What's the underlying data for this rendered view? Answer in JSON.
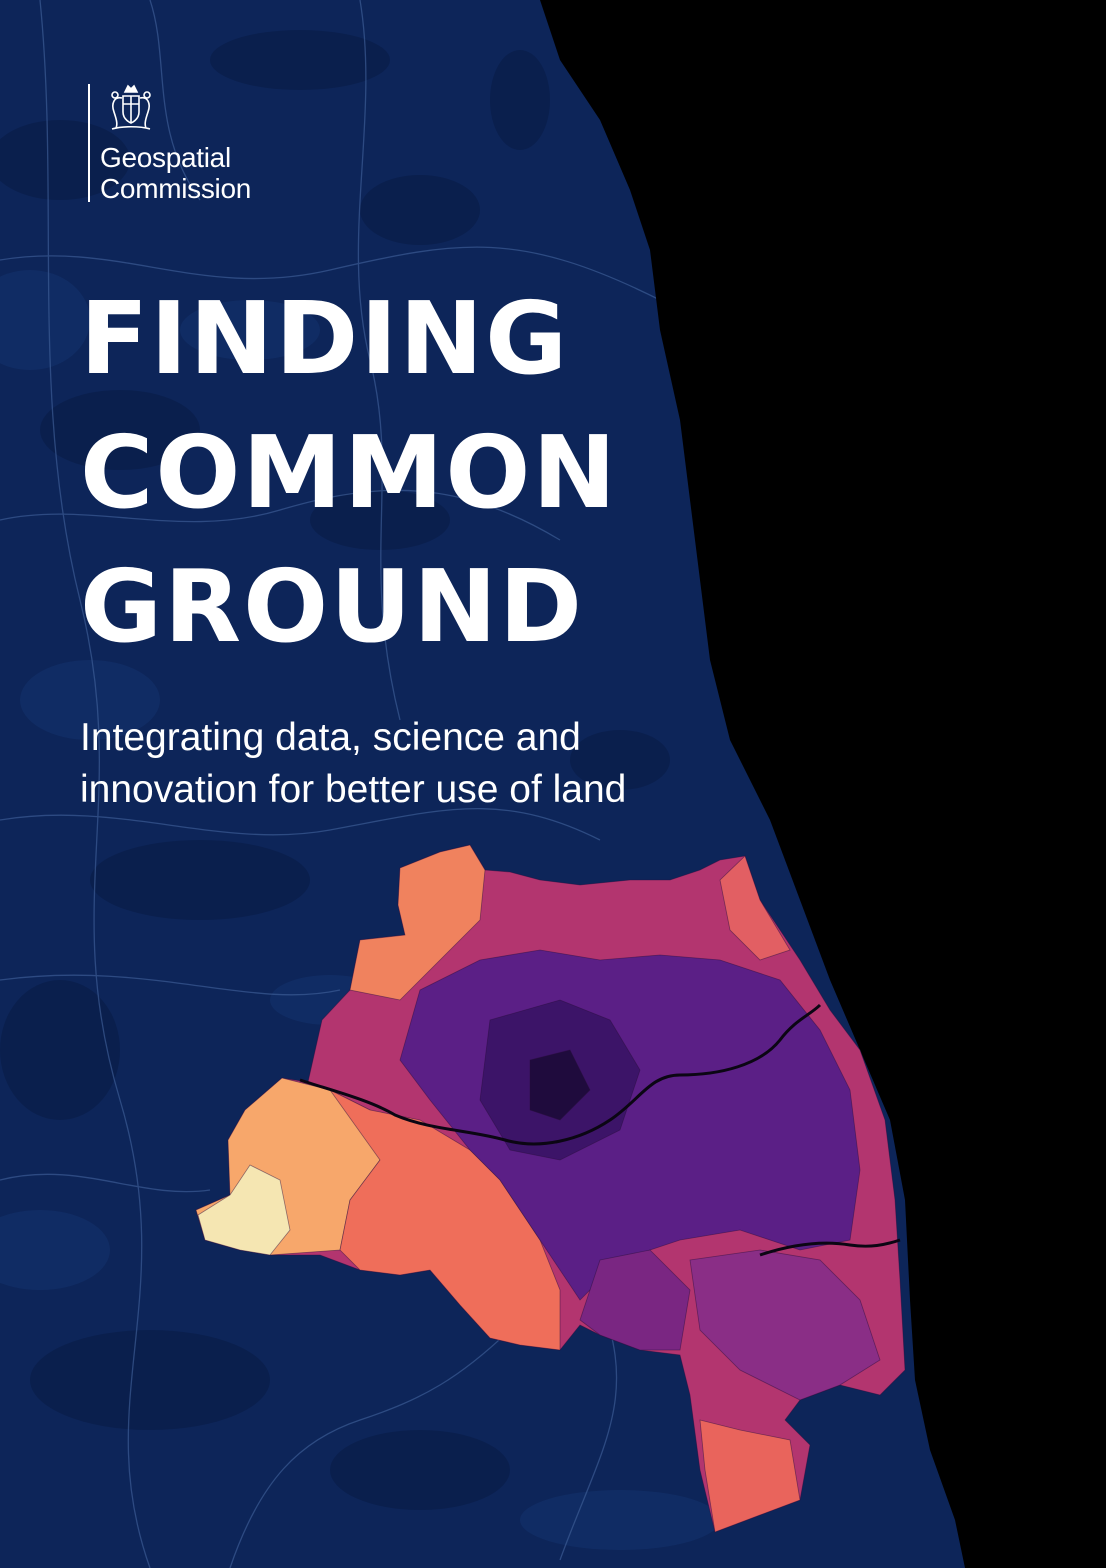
{
  "cover": {
    "organisation": {
      "line1": "Geospatial",
      "line2": "Commission",
      "crest_icon": "royal-coat-of-arms-icon"
    },
    "title": {
      "line1": "FINDING",
      "line2": "COMMON",
      "line3": "GROUND"
    },
    "subtitle": {
      "line1": "Integrating data, science and",
      "line2": "innovation for better use of land"
    },
    "colors": {
      "background_sea": "#000000",
      "land": "#0d2559",
      "text": "#ffffff",
      "choropleth_scale": [
        "#1d0a3d",
        "#4a167a",
        "#7b2a8c",
        "#c23e6b",
        "#ee6a58",
        "#f9a66c",
        "#fbe7b2"
      ]
    }
  }
}
